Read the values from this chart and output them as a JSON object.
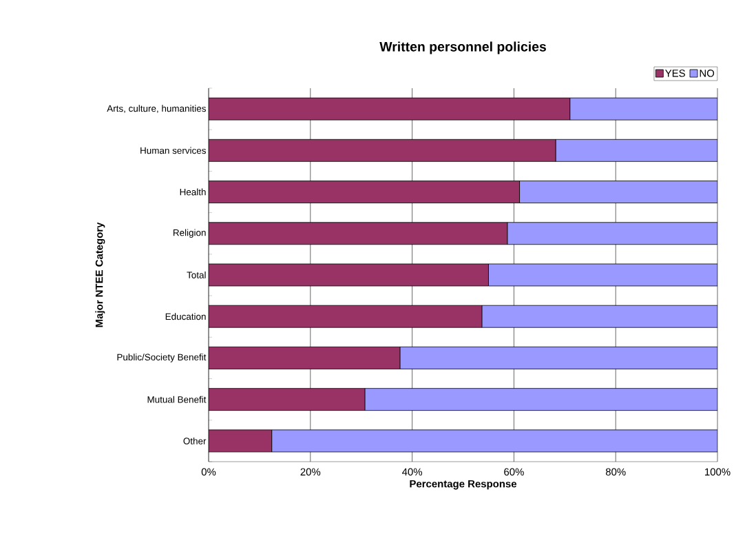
{
  "chart_data": {
    "type": "bar",
    "orientation": "horizontal",
    "stacked": true,
    "title": "Written personnel policies",
    "xlabel": "Percentage Response",
    "ylabel": "Major NTEE Category",
    "categories": [
      "Arts, culture, humanities",
      "Human services",
      "Health",
      "Religion",
      "Total",
      "Education",
      "Public/Society Benefit",
      "Mutual Benefit",
      "Other"
    ],
    "series": [
      {
        "name": "YES",
        "color": "#993366",
        "values": [
          71.0,
          68.2,
          61.1,
          58.7,
          55.0,
          53.7,
          37.6,
          30.7,
          12.4
        ]
      },
      {
        "name": "NO",
        "color": "#9999ff",
        "values": [
          29.0,
          31.8,
          38.9,
          41.3,
          45.0,
          46.3,
          62.4,
          69.3,
          87.6
        ]
      }
    ],
    "xlim": [
      0,
      100
    ],
    "xticks": [
      {
        "value": 0,
        "label": "0%"
      },
      {
        "value": 20,
        "label": "20%"
      },
      {
        "value": 40,
        "label": "40%"
      },
      {
        "value": 60,
        "label": "60%"
      },
      {
        "value": 80,
        "label": "80%"
      },
      {
        "value": 100,
        "label": "100%"
      }
    ],
    "grid": "x",
    "legend": "top right"
  }
}
